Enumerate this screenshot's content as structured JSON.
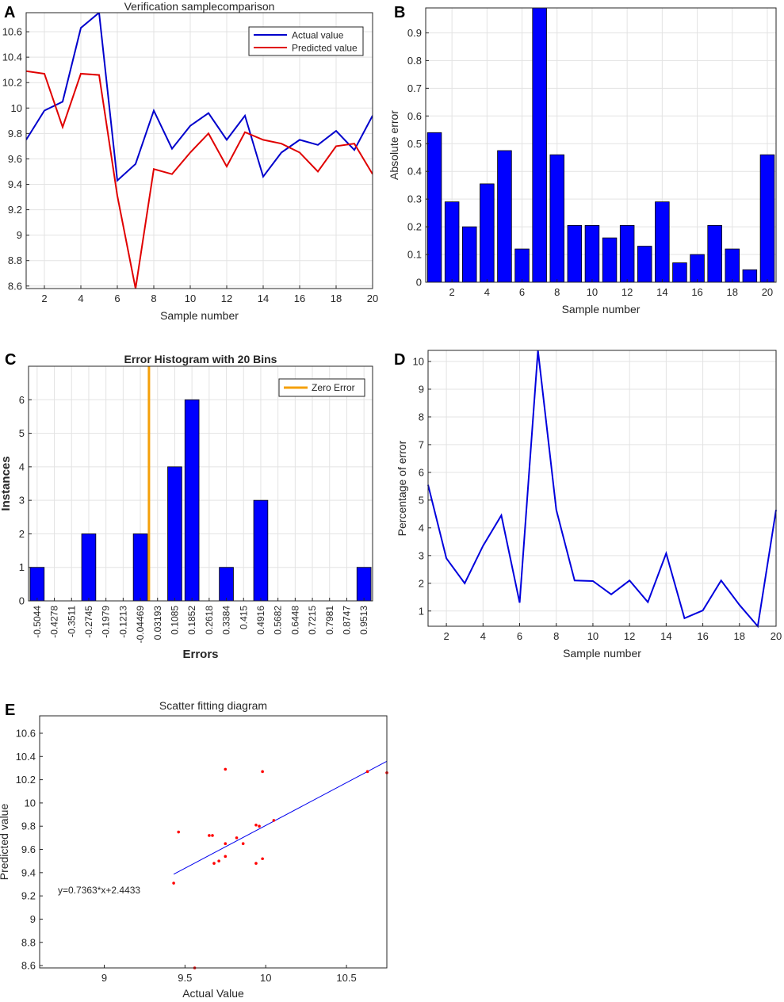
{
  "chart_data": [
    {
      "id": "A",
      "panel_letter": "A",
      "type": "line",
      "title": "Verification samplecomparison",
      "xlabel": "Sample number",
      "ylabel": "",
      "xlim": [
        1,
        20
      ],
      "ylim": [
        8.58,
        10.75
      ],
      "xticks": [
        "2",
        "4",
        "6",
        "8",
        "10",
        "12",
        "14",
        "16",
        "18",
        "20"
      ],
      "yticks": [
        "8.6",
        "8.8",
        "9",
        "9.2",
        "9.4",
        "9.6",
        "9.8",
        "10",
        "10.2",
        "10.4",
        "10.6"
      ],
      "grid": true,
      "legend_position": "top-right",
      "x": [
        1,
        2,
        3,
        4,
        5,
        6,
        7,
        8,
        9,
        10,
        11,
        12,
        13,
        14,
        15,
        16,
        17,
        18,
        19,
        20
      ],
      "series": [
        {
          "name": "Actual value",
          "color": "#0000cc",
          "values": [
            9.75,
            9.98,
            10.05,
            10.63,
            10.75,
            9.43,
            9.56,
            9.98,
            9.68,
            9.86,
            9.96,
            9.75,
            9.94,
            9.46,
            9.65,
            9.75,
            9.71,
            9.82,
            9.67,
            9.94
          ]
        },
        {
          "name": "Predicted value",
          "color": "#e00000",
          "values": [
            10.29,
            10.27,
            9.85,
            10.27,
            10.26,
            9.31,
            8.58,
            9.52,
            9.48,
            9.65,
            9.8,
            9.54,
            9.81,
            9.75,
            9.72,
            9.65,
            9.5,
            9.7,
            9.72,
            9.48
          ]
        }
      ]
    },
    {
      "id": "B",
      "panel_letter": "B",
      "type": "bar",
      "title": "",
      "xlabel": "Sample number",
      "ylabel": "Absolute error",
      "xlim": [
        0.5,
        20.5
      ],
      "ylim": [
        0,
        0.99
      ],
      "xticks": [
        "2",
        "4",
        "6",
        "8",
        "10",
        "12",
        "14",
        "16",
        "18",
        "20"
      ],
      "yticks": [
        "0",
        "0.1",
        "0.2",
        "0.3",
        "0.4",
        "0.5",
        "0.6",
        "0.7",
        "0.8",
        "0.9"
      ],
      "grid": true,
      "bar_color": "#0000ff",
      "x": [
        1,
        2,
        3,
        4,
        5,
        6,
        7,
        8,
        9,
        10,
        11,
        12,
        13,
        14,
        15,
        16,
        17,
        18,
        19,
        20
      ],
      "values": [
        0.54,
        0.29,
        0.2,
        0.355,
        0.475,
        0.12,
        1.0,
        0.46,
        0.205,
        0.205,
        0.16,
        0.205,
        0.13,
        0.29,
        0.07,
        0.1,
        0.205,
        0.12,
        0.045,
        0.46
      ]
    },
    {
      "id": "C",
      "panel_letter": "C",
      "type": "bar",
      "title": "Error Histogram with 20 Bins",
      "xlabel": "Errors",
      "ylabel": "Instances",
      "ylim": [
        0,
        7
      ],
      "yticks": [
        "0",
        "1",
        "2",
        "3",
        "4",
        "5",
        "6"
      ],
      "grid": true,
      "bar_color": "#0000ff",
      "categories": [
        "-0.5044",
        "-0.4278",
        "-0.3511",
        "-0.2745",
        "-0.1979",
        "-0.1213",
        "-0.04469",
        "0.03193",
        "0.1085",
        "0.1852",
        "0.2618",
        "0.3384",
        "0.415",
        "0.4916",
        "0.5682",
        "0.6448",
        "0.7215",
        "0.7981",
        "0.8747",
        "0.9513"
      ],
      "values": [
        1,
        0,
        0,
        2,
        0,
        0,
        2,
        0,
        4,
        6,
        0,
        1,
        0,
        3,
        0,
        0,
        0,
        0,
        0,
        1
      ],
      "zero_line": {
        "name": "Zero Error",
        "color": "#f5a00a",
        "bin_position": 6.5
      },
      "legend_position": "top-right"
    },
    {
      "id": "D",
      "panel_letter": "D",
      "type": "line",
      "title": "",
      "xlabel": "Sample number",
      "ylabel": "Percentage of error",
      "xlim": [
        1,
        20
      ],
      "ylim": [
        0.45,
        10.4
      ],
      "xticks": [
        "2",
        "4",
        "6",
        "8",
        "10",
        "12",
        "14",
        "16",
        "18",
        "20"
      ],
      "yticks": [
        "1",
        "2",
        "3",
        "4",
        "5",
        "6",
        "7",
        "8",
        "9",
        "10"
      ],
      "grid": true,
      "x": [
        1,
        2,
        3,
        4,
        5,
        6,
        7,
        8,
        9,
        10,
        11,
        12,
        13,
        14,
        15,
        16,
        17,
        18,
        19,
        20
      ],
      "series": [
        {
          "name": "Percentage of error",
          "color": "#0000dd",
          "values": [
            5.55,
            2.9,
            2.0,
            3.35,
            4.45,
            1.3,
            10.4,
            4.65,
            2.1,
            2.08,
            1.6,
            2.1,
            1.32,
            3.08,
            0.74,
            1.02,
            2.1,
            1.22,
            0.45,
            4.65
          ]
        }
      ]
    },
    {
      "id": "E",
      "panel_letter": "E",
      "type": "scatter",
      "title": "Scatter fitting diagram",
      "xlabel": "Actual Value",
      "ylabel": "Predicted value",
      "xlim": [
        8.6,
        10.75
      ],
      "ylim": [
        8.58,
        10.75
      ],
      "xticks": [
        "9",
        "9.5",
        "10",
        "10.5"
      ],
      "yticks": [
        "8.6",
        "8.8",
        "9",
        "9.2",
        "9.4",
        "9.6",
        "9.8",
        "10",
        "10.2",
        "10.4",
        "10.6"
      ],
      "grid": false,
      "point_color": "#ff0000",
      "points": [
        [
          9.75,
          10.29
        ],
        [
          9.98,
          10.27
        ],
        [
          10.05,
          9.85
        ],
        [
          10.63,
          10.27
        ],
        [
          10.75,
          10.26
        ],
        [
          9.43,
          9.31
        ],
        [
          9.56,
          8.58
        ],
        [
          9.98,
          9.52
        ],
        [
          9.68,
          9.48
        ],
        [
          9.86,
          9.65
        ],
        [
          9.96,
          9.8
        ],
        [
          9.75,
          9.54
        ],
        [
          9.94,
          9.81
        ],
        [
          9.46,
          9.75
        ],
        [
          9.65,
          9.72
        ],
        [
          9.75,
          9.65
        ],
        [
          9.71,
          9.5
        ],
        [
          9.82,
          9.7
        ],
        [
          9.67,
          9.72
        ],
        [
          9.94,
          9.48
        ]
      ],
      "fit": {
        "slope": 0.7363,
        "intercept": 2.4433,
        "x_range": [
          9.43,
          10.75
        ],
        "color": "#0000ee"
      },
      "annotation": "y=0.7363*x+2.4433"
    }
  ]
}
